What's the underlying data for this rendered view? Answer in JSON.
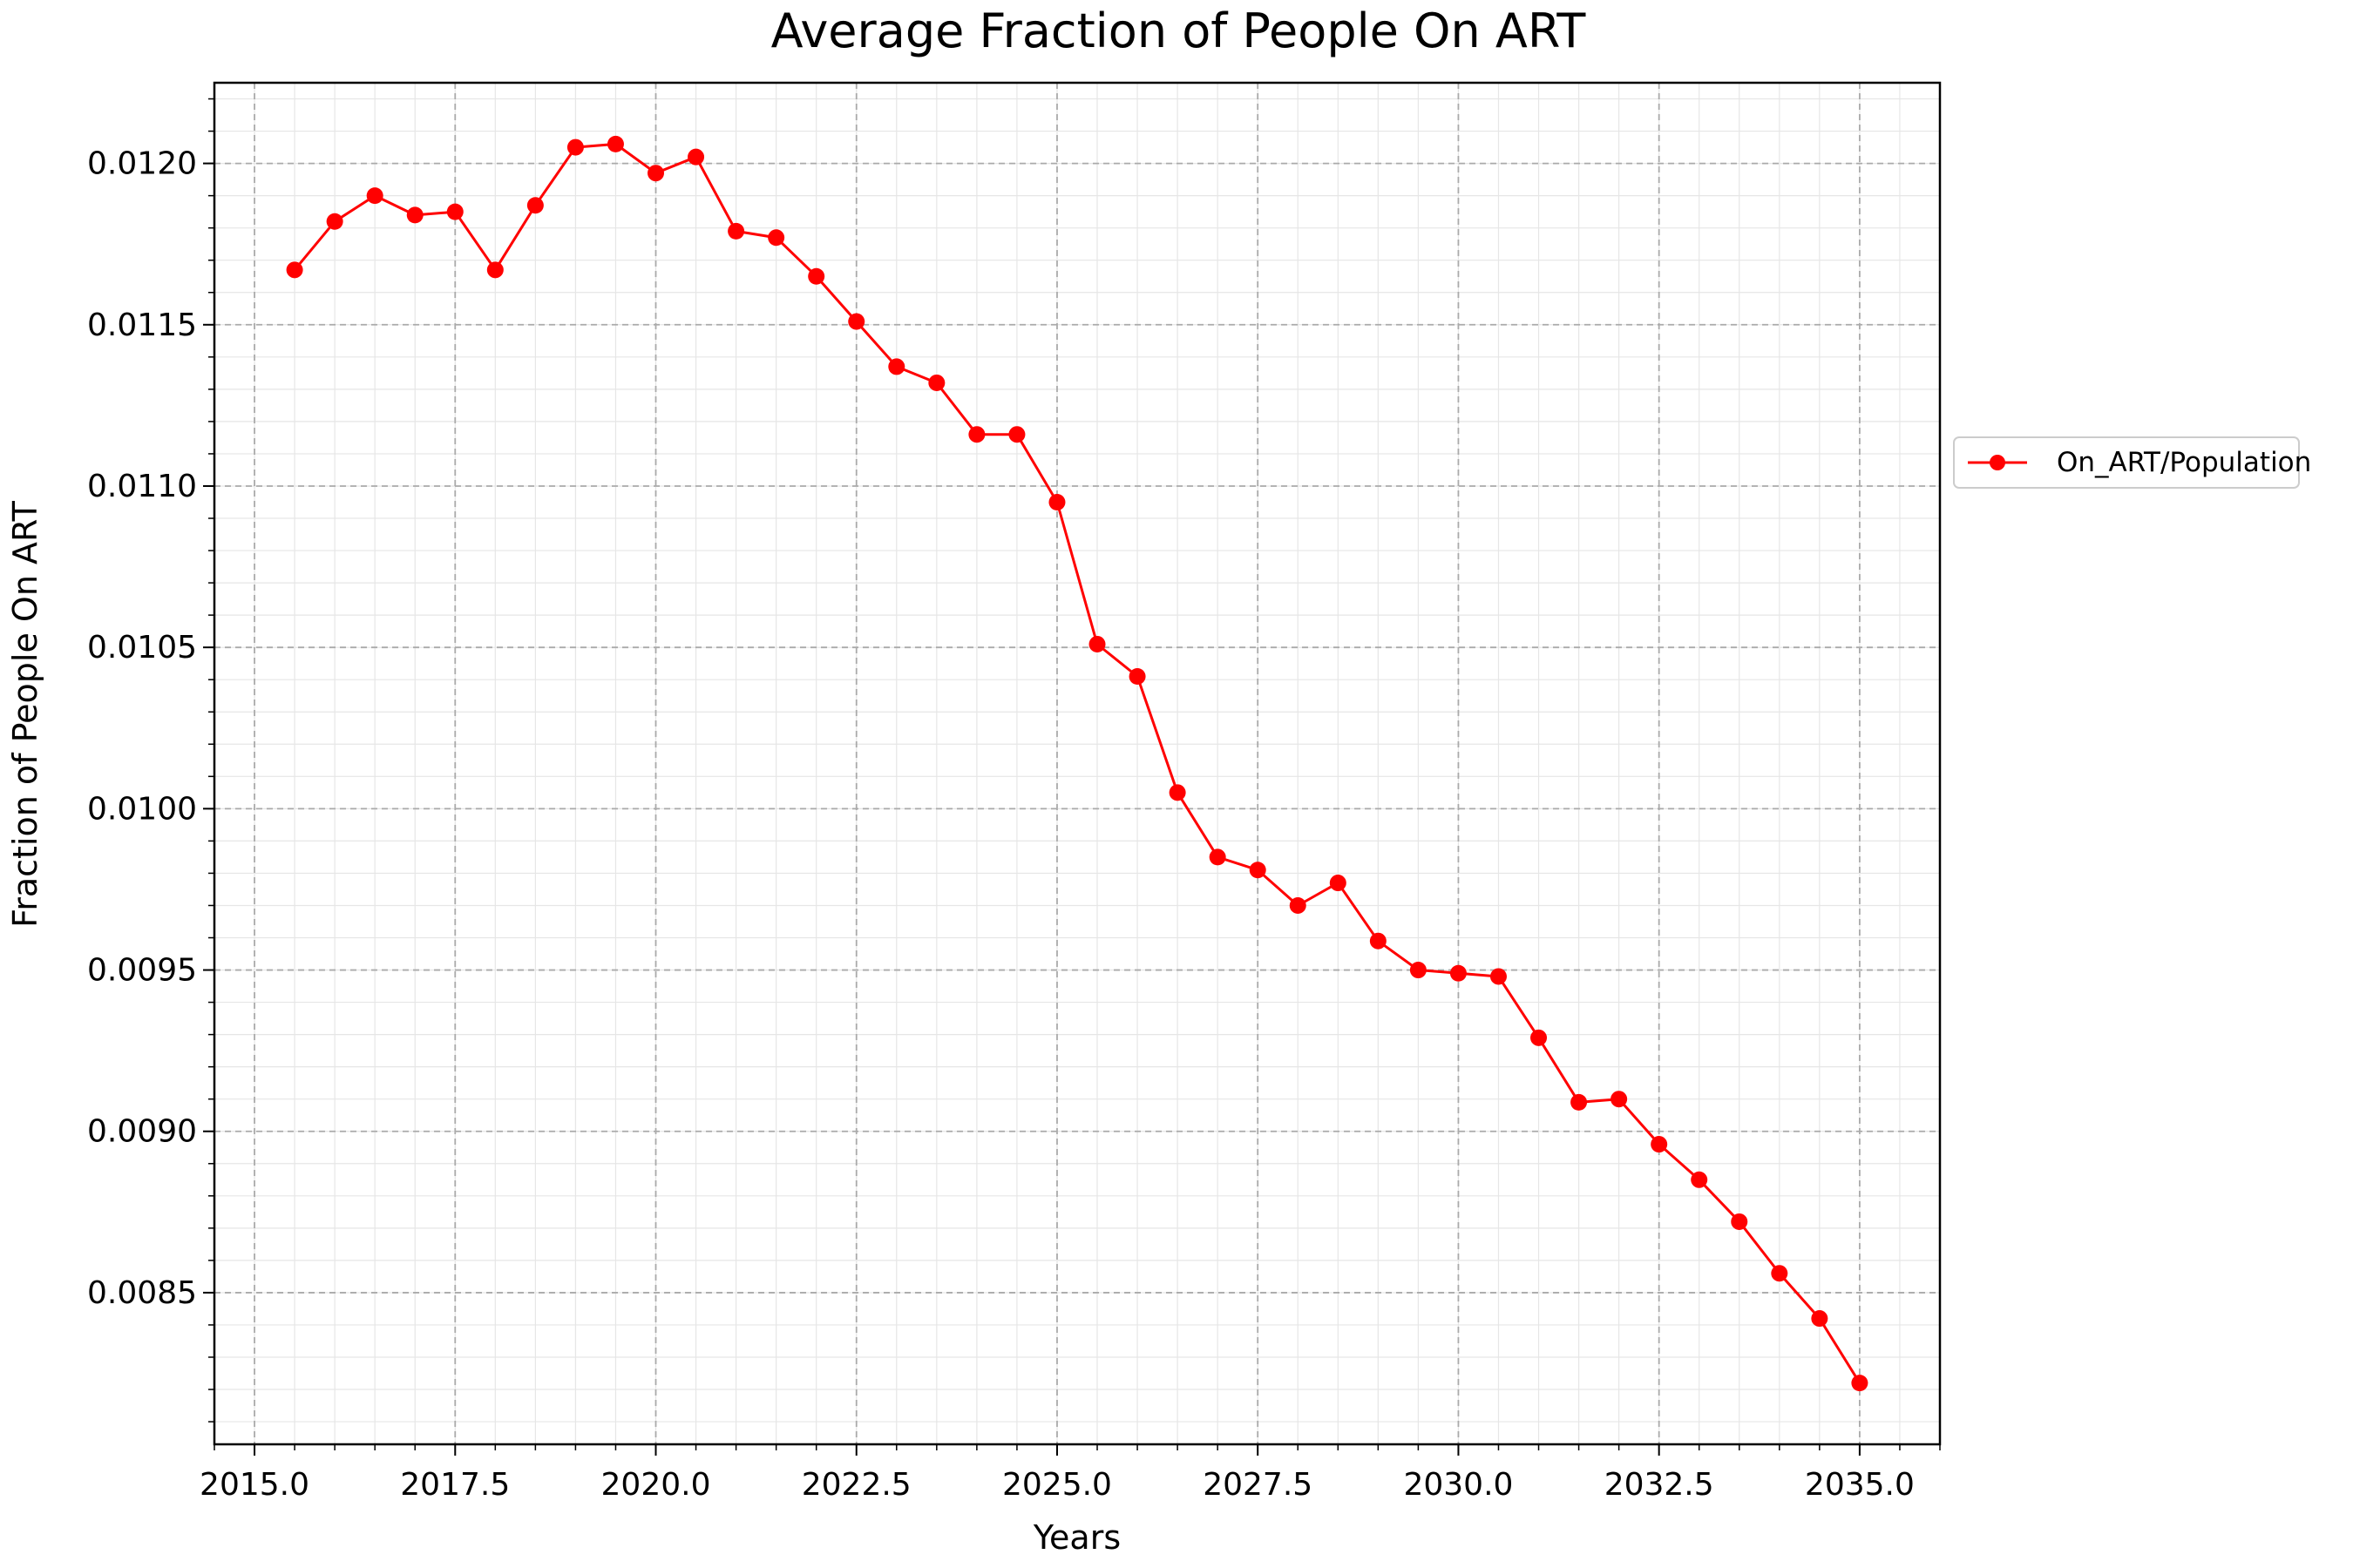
{
  "chart_data": {
    "type": "line",
    "title": "Average Fraction of People On ART",
    "xlabel": "Years",
    "ylabel": "Fraction of People On ART",
    "xlim": [
      2014.5,
      2036.0
    ],
    "ylim": [
      0.00803,
      0.01225
    ],
    "x_ticks": [
      2015.0,
      2017.5,
      2020.0,
      2022.5,
      2025.0,
      2027.5,
      2030.0,
      2032.5,
      2035.0
    ],
    "x_tick_labels": [
      "2015.0",
      "2017.5",
      "2020.0",
      "2022.5",
      "2025.0",
      "2027.5",
      "2030.0",
      "2032.5",
      "2035.0"
    ],
    "y_ticks": [
      0.0085,
      0.009,
      0.0095,
      0.01,
      0.0105,
      0.011,
      0.0115,
      0.012
    ],
    "y_tick_labels": [
      "0.0085",
      "0.0090",
      "0.0095",
      "0.0100",
      "0.0105",
      "0.0110",
      "0.0115",
      "0.0120"
    ],
    "grid": true,
    "minor_grid": true,
    "legend_position": "right-outside",
    "series": [
      {
        "name": "On_ART/Population",
        "color": "#ff0000",
        "marker": "circle",
        "x": [
          2015.5,
          2016.0,
          2016.5,
          2017.0,
          2017.5,
          2018.0,
          2018.5,
          2019.0,
          2019.5,
          2020.0,
          2020.5,
          2021.0,
          2021.5,
          2022.0,
          2022.5,
          2023.0,
          2023.5,
          2024.0,
          2024.5,
          2025.0,
          2025.5,
          2026.0,
          2026.5,
          2027.0,
          2027.5,
          2028.0,
          2028.5,
          2029.0,
          2029.5,
          2030.0,
          2030.5,
          2031.0,
          2031.5,
          2032.0,
          2032.5,
          2033.0,
          2033.5,
          2034.0,
          2034.5,
          2035.0
        ],
        "y": [
          0.01167,
          0.01182,
          0.0119,
          0.01184,
          0.01185,
          0.01167,
          0.01187,
          0.01205,
          0.01206,
          0.01197,
          0.01202,
          0.01179,
          0.01177,
          0.01165,
          0.01151,
          0.01137,
          0.01132,
          0.01116,
          0.01116,
          0.01095,
          0.01051,
          0.01041,
          0.01005,
          0.00985,
          0.00981,
          0.0097,
          0.00977,
          0.00959,
          0.0095,
          0.00949,
          0.00948,
          0.00929,
          0.00909,
          0.0091,
          0.00896,
          0.00885,
          0.00872,
          0.00856,
          0.00842,
          0.00822
        ]
      }
    ]
  }
}
